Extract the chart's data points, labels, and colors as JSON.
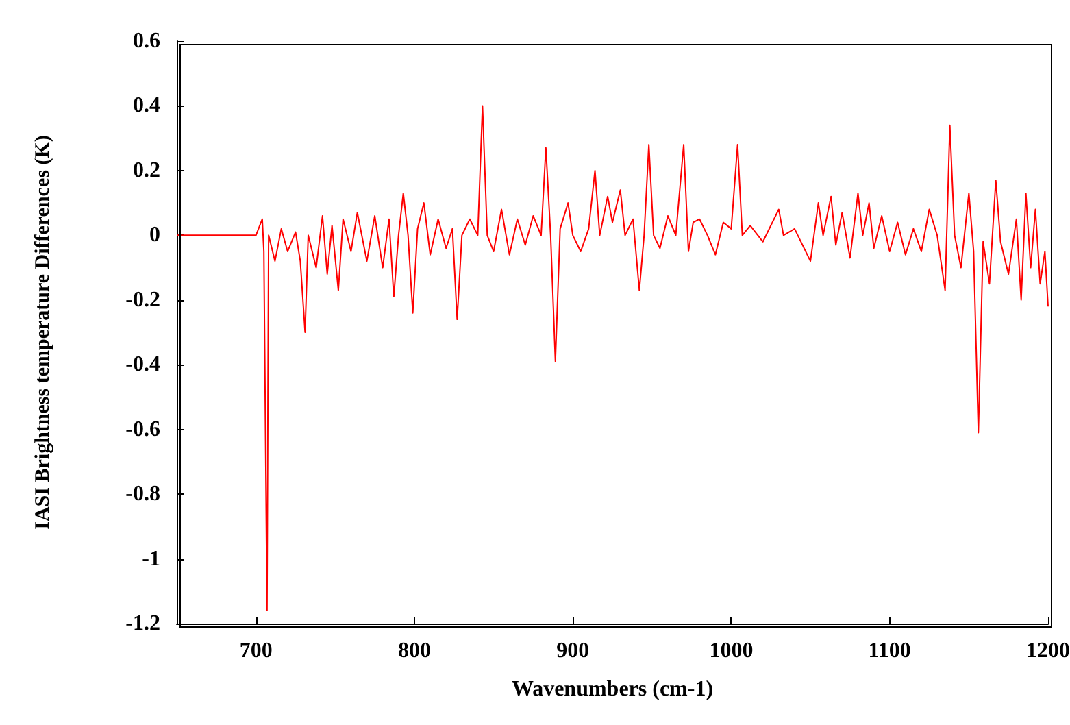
{
  "chart_data": {
    "type": "line",
    "xlabel": "Wavenumbers (cm-1)",
    "ylabel": "IASI Brightness temperature Differences (K)",
    "xlim": [
      650,
      1200
    ],
    "xticks": [
      700,
      800,
      900,
      1000,
      1100,
      1200
    ],
    "ylim": [
      -1.2,
      0.6
    ],
    "yticks": [
      -1.2,
      -1,
      -0.8,
      -0.6,
      -0.4,
      -0.2,
      0,
      0.2,
      0.4,
      0.6
    ],
    "grid": false,
    "marker": "none",
    "line_style": "solid",
    "series": [
      {
        "color": "#ff0000",
        "x": [
          650,
          700,
          704,
          705,
          707,
          708,
          712,
          716,
          720,
          725,
          728,
          731,
          733,
          738,
          742,
          745,
          748,
          752,
          755,
          760,
          764,
          770,
          775,
          780,
          784,
          787,
          790,
          793,
          796,
          799,
          802,
          806,
          810,
          815,
          820,
          824,
          827,
          830,
          835,
          840,
          843,
          846,
          850,
          855,
          860,
          865,
          870,
          875,
          880,
          883,
          886,
          889,
          892,
          897,
          900,
          905,
          910,
          914,
          917,
          922,
          925,
          930,
          933,
          938,
          942,
          945,
          948,
          951,
          955,
          960,
          965,
          970,
          973,
          976,
          980,
          985,
          990,
          995,
          1000,
          1004,
          1007,
          1012,
          1020,
          1030,
          1033,
          1040,
          1050,
          1055,
          1058,
          1063,
          1066,
          1070,
          1075,
          1080,
          1083,
          1087,
          1090,
          1095,
          1100,
          1105,
          1110,
          1115,
          1120,
          1125,
          1130,
          1135,
          1138,
          1141,
          1145,
          1150,
          1153,
          1156,
          1159,
          1163,
          1167,
          1170,
          1175,
          1180,
          1183,
          1186,
          1189,
          1192,
          1195,
          1198,
          1200
        ],
        "values": [
          0,
          0,
          0.05,
          -0.05,
          -1.16,
          0,
          -0.08,
          0.02,
          -0.05,
          0.01,
          -0.08,
          -0.3,
          0,
          -0.1,
          0.06,
          -0.12,
          0.03,
          -0.17,
          0.05,
          -0.05,
          0.07,
          -0.08,
          0.06,
          -0.1,
          0.05,
          -0.19,
          0,
          0.13,
          0,
          -0.24,
          0.02,
          0.1,
          -0.06,
          0.05,
          -0.04,
          0.02,
          -0.26,
          0,
          0.05,
          0,
          0.4,
          0,
          -0.05,
          0.08,
          -0.06,
          0.05,
          -0.03,
          0.06,
          0,
          0.27,
          0,
          -0.39,
          0.02,
          0.1,
          0,
          -0.05,
          0.02,
          0.2,
          0,
          0.12,
          0.04,
          0.14,
          0,
          0.05,
          -0.17,
          0,
          0.28,
          0,
          -0.04,
          0.06,
          0,
          0.28,
          -0.05,
          0.04,
          0.05,
          0,
          -0.06,
          0.04,
          0.02,
          0.28,
          0,
          0.03,
          -0.02,
          0.08,
          0,
          0.02,
          -0.08,
          0.1,
          0,
          0.12,
          -0.03,
          0.07,
          -0.07,
          0.13,
          0,
          0.1,
          -0.04,
          0.06,
          -0.05,
          0.04,
          -0.06,
          0.02,
          -0.05,
          0.08,
          0,
          -0.17,
          0.34,
          0,
          -0.1,
          0.13,
          -0.05,
          -0.61,
          -0.02,
          -0.15,
          0.17,
          -0.02,
          -0.12,
          0.05,
          -0.2,
          0.13,
          -0.1,
          0.08,
          -0.15,
          -0.05,
          -0.22
        ]
      }
    ]
  }
}
